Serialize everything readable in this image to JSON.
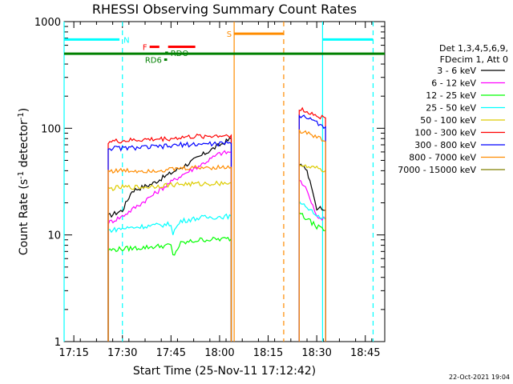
{
  "chart_data": {
    "type": "line",
    "title": "RHESSI Observing Summary Count Rates",
    "xlabel": "Start Time (25-Nov-11 17:12:42)",
    "ylabel": "Count Rate (s⁻¹ detector⁻¹)",
    "ylabel_main": "Count Rate (s",
    "ylabel_sup1": "-1",
    "ylabel_mid": " detector",
    "ylabel_sup2": "-1",
    "ylabel_end": ")",
    "y_scale": "log",
    "ylim": [
      1,
      1000
    ],
    "xlim_minutes": [
      17.2,
      18.85
    ],
    "x_ticks": [
      {
        "t": 17.25,
        "label": "17:15"
      },
      {
        "t": 17.5,
        "label": "17:30"
      },
      {
        "t": 17.75,
        "label": "17:45"
      },
      {
        "t": 18.0,
        "label": "18:00"
      },
      {
        "t": 18.25,
        "label": "18:15"
      },
      {
        "t": 18.5,
        "label": "18:30"
      },
      {
        "t": 18.75,
        "label": "18:45"
      }
    ],
    "y_ticks": [
      {
        "v": 1,
        "label": "1"
      },
      {
        "v": 10,
        "label": "10"
      },
      {
        "v": 100,
        "label": "100"
      },
      {
        "v": 1000,
        "label": "1000"
      }
    ],
    "legend_header": [
      "Det 1,3,4,5,6,9,",
      "FDecim 1, Att 0"
    ],
    "series": [
      {
        "name": "3 - 6 keV",
        "color": "#000000",
        "seg1": [
          [
            17.427,
            15
          ],
          [
            17.5,
            17
          ],
          [
            17.55,
            26
          ],
          [
            17.65,
            30
          ],
          [
            17.75,
            38
          ],
          [
            17.85,
            48
          ],
          [
            17.95,
            62
          ],
          [
            18.06,
            80
          ]
        ],
        "seg2": [
          [
            18.41,
            46
          ],
          [
            18.45,
            40
          ],
          [
            18.48,
            26
          ],
          [
            18.5,
            18
          ],
          [
            18.545,
            17
          ]
        ]
      },
      {
        "name": "6 - 12 keV",
        "color": "#ff00ff",
        "seg1": [
          [
            17.427,
            13
          ],
          [
            17.5,
            15
          ],
          [
            17.6,
            20
          ],
          [
            17.7,
            27
          ],
          [
            17.8,
            36
          ],
          [
            17.9,
            45
          ],
          [
            18.0,
            58
          ],
          [
            18.06,
            60
          ]
        ],
        "seg2": [
          [
            18.41,
            33
          ],
          [
            18.45,
            26
          ],
          [
            18.48,
            19
          ],
          [
            18.5,
            15
          ],
          [
            18.545,
            14
          ]
        ]
      },
      {
        "name": "12 - 25 keV",
        "color": "#00ff00",
        "seg1": [
          [
            17.427,
            7.2
          ],
          [
            17.5,
            7.4
          ],
          [
            17.6,
            7.6
          ],
          [
            17.75,
            8.0
          ],
          [
            17.76,
            6.3
          ],
          [
            17.8,
            8.3
          ],
          [
            17.9,
            9.0
          ],
          [
            18.06,
            9.2
          ]
        ],
        "seg2": [
          [
            18.41,
            16
          ],
          [
            18.45,
            14
          ],
          [
            18.5,
            12
          ],
          [
            18.545,
            11
          ]
        ]
      },
      {
        "name": "25 - 50 keV",
        "color": "#00ffff",
        "seg1": [
          [
            17.427,
            11
          ],
          [
            17.5,
            11.5
          ],
          [
            17.6,
            12
          ],
          [
            17.75,
            12.6
          ],
          [
            17.76,
            10.5
          ],
          [
            17.8,
            13.5
          ],
          [
            17.9,
            14.5
          ],
          [
            18.06,
            15
          ]
        ],
        "seg2": [
          [
            18.41,
            20
          ],
          [
            18.45,
            18
          ],
          [
            18.5,
            15
          ],
          [
            18.545,
            14
          ]
        ]
      },
      {
        "name": "50 - 100 keV",
        "color": "#ddcc00",
        "seg1": [
          [
            17.427,
            27
          ],
          [
            17.5,
            28
          ],
          [
            17.6,
            28
          ],
          [
            17.7,
            29
          ],
          [
            17.8,
            30
          ],
          [
            17.9,
            30
          ],
          [
            18.06,
            31
          ]
        ],
        "seg2": [
          [
            18.41,
            46
          ],
          [
            18.45,
            43
          ],
          [
            18.5,
            42
          ],
          [
            18.545,
            40
          ]
        ]
      },
      {
        "name": "100 - 300 keV",
        "color": "#ff0000",
        "seg1": [
          [
            17.427,
            75
          ],
          [
            17.5,
            76
          ],
          [
            17.6,
            78
          ],
          [
            17.75,
            80
          ],
          [
            17.8,
            82
          ],
          [
            17.9,
            84
          ],
          [
            18.06,
            86
          ]
        ],
        "seg2": [
          [
            18.41,
            150
          ],
          [
            18.45,
            145
          ],
          [
            18.5,
            130
          ],
          [
            18.545,
            125
          ]
        ]
      },
      {
        "name": "300 - 800 keV",
        "color": "#0000ff",
        "seg1": [
          [
            17.427,
            65
          ],
          [
            17.5,
            65
          ],
          [
            17.6,
            66
          ],
          [
            17.75,
            68
          ],
          [
            17.8,
            70
          ],
          [
            17.9,
            71
          ],
          [
            18.06,
            72
          ]
        ],
        "seg2": [
          [
            18.41,
            130
          ],
          [
            18.45,
            125
          ],
          [
            18.5,
            112
          ],
          [
            18.545,
            103
          ]
        ]
      },
      {
        "name": "800 - 7000 keV",
        "color": "#ff8c00",
        "seg1": [
          [
            17.427,
            40
          ],
          [
            17.5,
            40
          ],
          [
            17.6,
            40
          ],
          [
            17.75,
            41
          ],
          [
            17.8,
            42
          ],
          [
            17.9,
            43
          ],
          [
            18.06,
            43
          ]
        ],
        "seg2": [
          [
            18.41,
            94
          ],
          [
            18.45,
            90
          ],
          [
            18.5,
            82
          ],
          [
            18.545,
            75
          ]
        ]
      },
      {
        "name": "7000 - 15000 keV",
        "color": "#808000",
        "seg1": [],
        "seg2": []
      }
    ],
    "flags": [
      {
        "label": "N",
        "color": "#00ffff",
        "segs": [
          [
            17.2,
            17.485
          ],
          [
            18.53,
            18.79
          ]
        ],
        "v": 680
      },
      {
        "label": "F",
        "color": "#ff0000",
        "segs": [
          [
            17.64,
            17.69
          ],
          [
            17.735,
            17.875
          ]
        ],
        "v": 580
      },
      {
        "label": "S",
        "color": "#ff8c00",
        "segs": [
          [
            18.075,
            18.33
          ]
        ],
        "v": 770
      },
      {
        "label": "RDO",
        "color": "#008000",
        "segs": [
          [
            17.72,
            17.735
          ]
        ],
        "v": 510
      },
      {
        "label": "RD6",
        "color": "#008000",
        "segs": [
          [
            17.715,
            17.73
          ]
        ],
        "v": 440
      }
    ],
    "saa_line": {
      "color": "#008000",
      "v": 500,
      "range": [
        17.2,
        18.85
      ]
    },
    "vlines": [
      {
        "t": 17.2,
        "color": "#00ffff",
        "dashed": false
      },
      {
        "t": 17.5,
        "color": "#00ffff",
        "dashed": true
      },
      {
        "t": 18.075,
        "color": "#ff8c00",
        "dashed": false
      },
      {
        "t": 18.33,
        "color": "#ff8c00",
        "dashed": true
      },
      {
        "t": 18.53,
        "color": "#00ffff",
        "dashed": false
      },
      {
        "t": 18.79,
        "color": "#00ffff",
        "dashed": true
      }
    ]
  },
  "footer_date": "22-Oct-2021 19:04"
}
